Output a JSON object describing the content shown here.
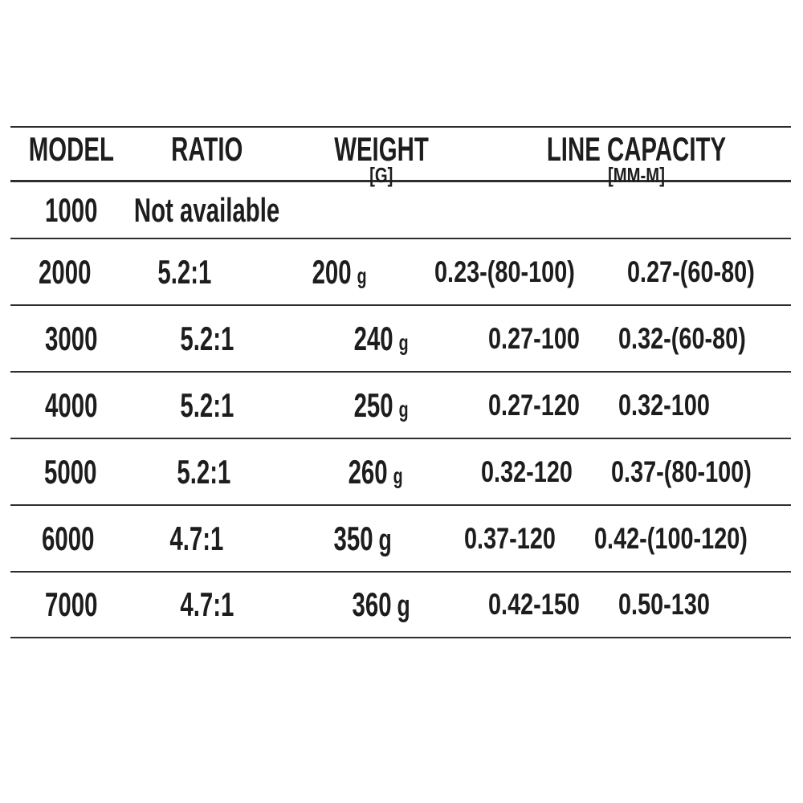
{
  "page": {
    "background_color": "#ffffff",
    "text_color": "#1d1d1d",
    "rule_color": "#2e2e2e"
  },
  "table": {
    "headers": [
      {
        "label": "MODEL",
        "sublabel": ""
      },
      {
        "label": "RATIO",
        "sublabel": ""
      },
      {
        "label": "WEIGHT",
        "sublabel": "[G]"
      },
      {
        "label": "LINE CAPACITY",
        "sublabel": "[MM-M]"
      }
    ],
    "rows": [
      {
        "model": "1000",
        "ratio": "Not available",
        "weight": "",
        "weight_unit": "",
        "capacity_a": "",
        "capacity_b": ""
      },
      {
        "model": "2000",
        "ratio": "5.2:1",
        "weight": "200",
        "weight_unit": "g",
        "capacity_a": "0.23-(80-100)",
        "capacity_b": "0.27-(60-80)"
      },
      {
        "model": "3000",
        "ratio": "5.2:1",
        "weight": "240",
        "weight_unit": "g",
        "capacity_a": "0.27-100",
        "capacity_b": "0.32-(60-80)"
      },
      {
        "model": "4000",
        "ratio": "5.2:1",
        "weight": "250",
        "weight_unit": "g",
        "capacity_a": "0.27-120",
        "capacity_b": "0.32-100"
      },
      {
        "model": "5000",
        "ratio": "5.2:1",
        "weight": "260",
        "weight_unit": "g",
        "capacity_a": "0.32-120",
        "capacity_b": "0.37-(80-100)"
      },
      {
        "model": "6000",
        "ratio": "4.7:1",
        "weight": "350",
        "weight_unit": "g",
        "capacity_a": "0.37-120",
        "capacity_b": "0.42-(100-120)"
      },
      {
        "model": "7000",
        "ratio": "4.7:1",
        "weight": "360",
        "weight_unit": "g",
        "capacity_a": "0.42-150",
        "capacity_b": "0.50-130"
      }
    ]
  }
}
